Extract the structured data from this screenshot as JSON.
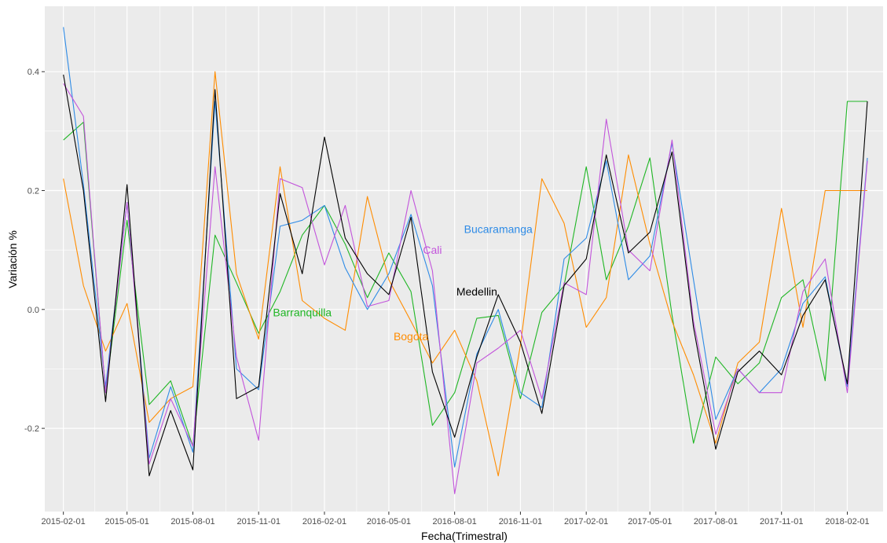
{
  "chart_data": {
    "type": "line",
    "title": "",
    "xlabel": "Fecha(Trimestral)",
    "ylabel": "Variación %",
    "ylim": [
      -0.34,
      0.51
    ],
    "y_ticks": [
      -0.2,
      0.0,
      0.2,
      0.4
    ],
    "y_tick_labels": [
      "-0.2",
      "0.0",
      "0.2",
      "0.4"
    ],
    "x_start": "2015-02-01",
    "x_end": "2018-03-01",
    "x_ticks": [
      "2015-02-01",
      "2015-05-01",
      "2015-08-01",
      "2015-11-01",
      "2016-02-01",
      "2016-05-01",
      "2016-08-01",
      "2016-11-01",
      "2017-02-01",
      "2017-05-01",
      "2017-08-01",
      "2017-11-01",
      "2018-02-01"
    ],
    "grid": true,
    "legend": "none (direct labels)",
    "background": "#ebebeb",
    "x": [
      "2015-02-01",
      "2015-03-01",
      "2015-04-01",
      "2015-05-01",
      "2015-06-01",
      "2015-07-01",
      "2015-08-01",
      "2015-09-01",
      "2015-10-01",
      "2015-11-01",
      "2015-12-01",
      "2016-01-01",
      "2016-02-01",
      "2016-03-01",
      "2016-04-01",
      "2016-05-01",
      "2016-06-01",
      "2016-07-01",
      "2016-08-01",
      "2016-09-01",
      "2016-10-01",
      "2016-11-01",
      "2016-12-01",
      "2017-01-01",
      "2017-02-01",
      "2017-03-01",
      "2017-04-01",
      "2017-05-01",
      "2017-06-01",
      "2017-07-01",
      "2017-08-01",
      "2017-09-01",
      "2017-10-01",
      "2017-11-01",
      "2017-12-01",
      "2018-01-01",
      "2018-02-01",
      "2018-03-01"
    ],
    "series": [
      {
        "name": "Barranquilla",
        "color": "#1FB624",
        "label": {
          "text": "Barranquilla",
          "x": "2016-01-01",
          "y": -0.005
        },
        "values": [
          0.285,
          0.315,
          -0.14,
          0.15,
          -0.16,
          -0.12,
          -0.23,
          0.125,
          0.045,
          -0.04,
          0.03,
          0.125,
          0.175,
          0.11,
          0.02,
          0.095,
          0.03,
          -0.195,
          -0.14,
          -0.015,
          -0.01,
          -0.15,
          -0.005,
          0.04,
          0.24,
          0.05,
          0.14,
          0.255,
          -0.01,
          -0.225,
          -0.08,
          -0.125,
          -0.09,
          0.02,
          0.05,
          -0.12,
          0.35,
          0.35
        ]
      },
      {
        "name": "Bogota",
        "color": "#FF8C00",
        "label": {
          "text": "Bogota",
          "x": "2016-06-01",
          "y": -0.045
        },
        "values": [
          0.22,
          0.04,
          -0.07,
          0.01,
          -0.19,
          -0.15,
          -0.13,
          0.4,
          0.06,
          -0.05,
          0.24,
          0.015,
          -0.015,
          -0.035,
          0.19,
          0.05,
          -0.02,
          -0.09,
          -0.035,
          -0.12,
          -0.28,
          -0.06,
          0.22,
          0.145,
          -0.03,
          0.02,
          0.26,
          0.11,
          -0.02,
          -0.11,
          -0.225,
          -0.09,
          -0.055,
          0.17,
          -0.03,
          0.2,
          0.2,
          0.2
        ]
      },
      {
        "name": "Bucaramanga",
        "color": "#2E8BE6",
        "label": {
          "text": "Bucaramanga",
          "x": "2016-10-01",
          "y": 0.135
        },
        "values": [
          0.475,
          0.21,
          -0.13,
          0.18,
          -0.25,
          -0.13,
          -0.24,
          0.35,
          -0.1,
          -0.135,
          0.14,
          0.15,
          0.175,
          0.07,
          0.0,
          0.06,
          0.16,
          0.04,
          -0.265,
          -0.075,
          0.0,
          -0.14,
          -0.165,
          0.085,
          0.12,
          0.25,
          0.05,
          0.09,
          0.28,
          0.05,
          -0.185,
          -0.1,
          -0.14,
          -0.1,
          0.01,
          0.055,
          -0.13,
          0.255
        ]
      },
      {
        "name": "Cali",
        "color": "#C254DB",
        "label": {
          "text": "Cali",
          "x": "2016-07-01",
          "y": 0.1
        },
        "values": [
          0.38,
          0.325,
          -0.14,
          0.18,
          -0.26,
          -0.15,
          -0.23,
          0.24,
          -0.08,
          -0.22,
          0.22,
          0.205,
          0.075,
          0.175,
          0.005,
          0.015,
          0.2,
          0.065,
          -0.31,
          -0.09,
          -0.065,
          -0.035,
          -0.15,
          0.045,
          0.025,
          0.32,
          0.1,
          0.065,
          0.285,
          -0.02,
          -0.21,
          -0.1,
          -0.14,
          -0.14,
          0.03,
          0.085,
          -0.14,
          0.25
        ]
      },
      {
        "name": "Medellin",
        "color": "#000000",
        "label": {
          "text": "Medellin",
          "x": "2016-09-01",
          "y": 0.03
        },
        "values": [
          0.395,
          0.2,
          -0.155,
          0.21,
          -0.28,
          -0.17,
          -0.27,
          0.37,
          -0.15,
          -0.13,
          0.195,
          0.06,
          0.29,
          0.12,
          0.06,
          0.025,
          0.155,
          -0.105,
          -0.215,
          -0.08,
          0.025,
          -0.055,
          -0.175,
          0.04,
          0.085,
          0.26,
          0.095,
          0.13,
          0.265,
          -0.03,
          -0.235,
          -0.105,
          -0.07,
          -0.11,
          -0.01,
          0.05,
          -0.125,
          0.35
        ]
      }
    ]
  }
}
